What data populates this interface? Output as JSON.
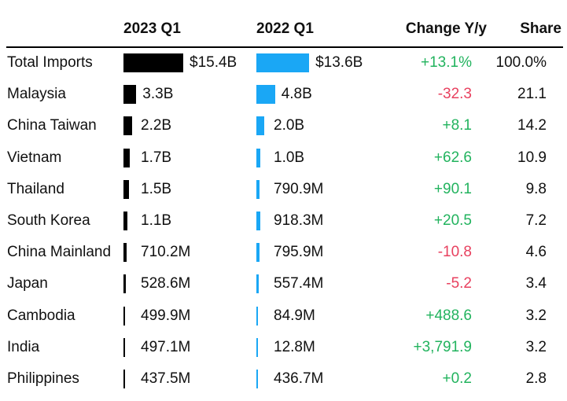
{
  "chart_data": {
    "type": "table",
    "headers": {
      "country": "",
      "period_2023": "2023 Q1",
      "period_2022": "2022 Q1",
      "change": "Change Y/y",
      "share": "Share"
    },
    "rows": [
      {
        "name": "Total Imports",
        "v2023": 15.4,
        "label2023": "$15.4B",
        "v2022": 13.6,
        "label2022": "$13.6B",
        "change": "+13.1%",
        "share": "100.0%"
      },
      {
        "name": "Malaysia",
        "v2023": 3.3,
        "label2023": "3.3B",
        "v2022": 4.8,
        "label2022": "4.8B",
        "change": "-32.3",
        "share": "21.1"
      },
      {
        "name": "China Taiwan",
        "v2023": 2.2,
        "label2023": "2.2B",
        "v2022": 2.0,
        "label2022": "2.0B",
        "change": "+8.1",
        "share": "14.2"
      },
      {
        "name": "Vietnam",
        "v2023": 1.7,
        "label2023": "1.7B",
        "v2022": 1.0,
        "label2022": "1.0B",
        "change": "+62.6",
        "share": "10.9"
      },
      {
        "name": "Thailand",
        "v2023": 1.5,
        "label2023": "1.5B",
        "v2022": 0.7909,
        "label2022": "790.9M",
        "change": "+90.1",
        "share": "9.8"
      },
      {
        "name": "South Korea",
        "v2023": 1.1,
        "label2023": "1.1B",
        "v2022": 0.9183,
        "label2022": "918.3M",
        "change": "+20.5",
        "share": "7.2"
      },
      {
        "name": "China Mainland",
        "v2023": 0.7102,
        "label2023": "710.2M",
        "v2022": 0.7959,
        "label2022": "795.9M",
        "change": "-10.8",
        "share": "4.6"
      },
      {
        "name": "Japan",
        "v2023": 0.5286,
        "label2023": "528.6M",
        "v2022": 0.5574,
        "label2022": "557.4M",
        "change": "-5.2",
        "share": "3.4"
      },
      {
        "name": "Cambodia",
        "v2023": 0.4999,
        "label2023": "499.9M",
        "v2022": 0.0849,
        "label2022": "84.9M",
        "change": "+488.6",
        "share": "3.2"
      },
      {
        "name": "India",
        "v2023": 0.4971,
        "label2023": "497.1M",
        "v2022": 0.0128,
        "label2022": "12.8M",
        "change": "+3,791.9",
        "share": "3.2"
      },
      {
        "name": "Philippines",
        "v2023": 0.4375,
        "label2023": "437.5M",
        "v2022": 0.4367,
        "label2022": "436.7M",
        "change": "+0.2",
        "share": "2.8"
      }
    ],
    "colors": {
      "bar_2023": "#000000",
      "bar_2022": "#1aa7f5",
      "positive": "#22b35e",
      "negative": "#e8415f"
    }
  }
}
